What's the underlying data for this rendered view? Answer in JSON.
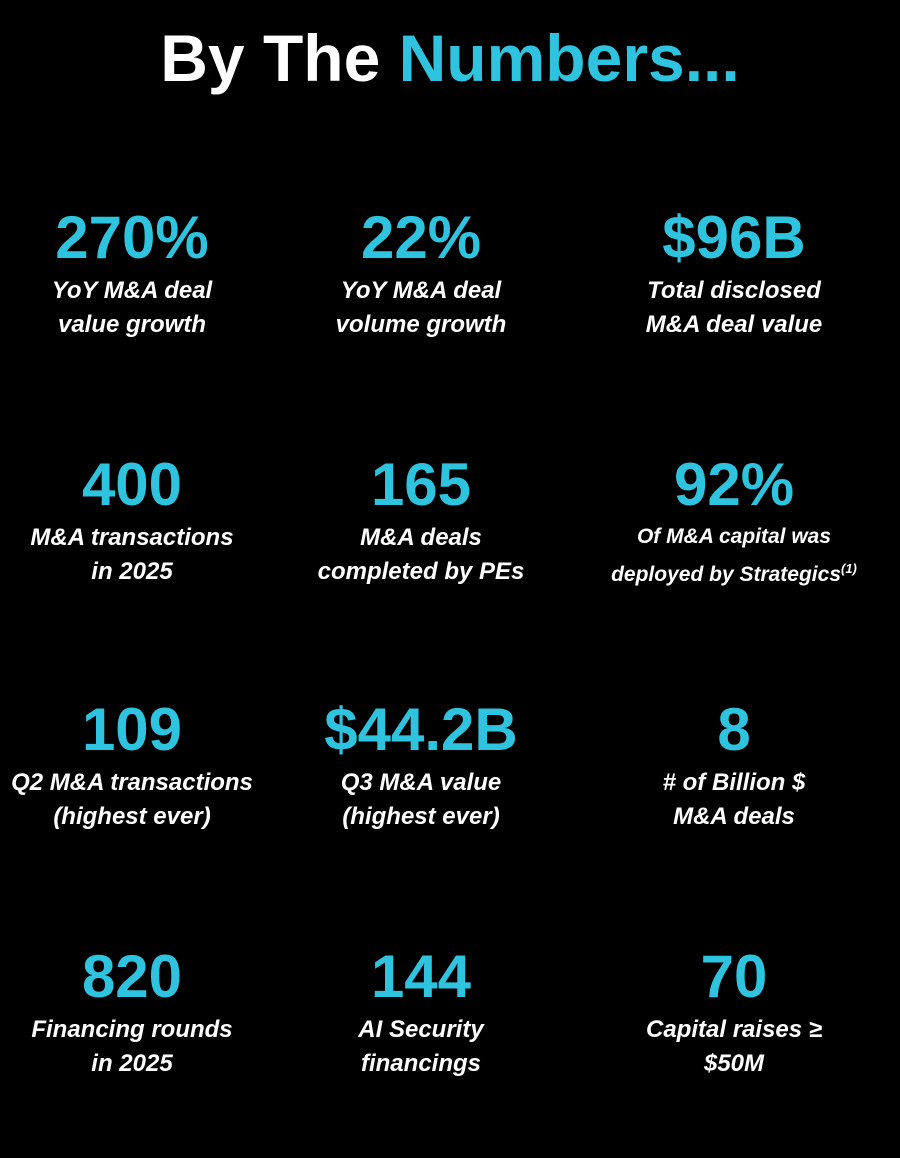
{
  "header": {
    "title_start": "By The",
    "title_highlight": "Numbers..."
  },
  "stats": [
    {
      "value": "270%",
      "lines": [
        "YoY M&A deal",
        "value growth"
      ]
    },
    {
      "value": "22%",
      "lines": [
        "YoY M&A deal",
        "volume growth"
      ]
    },
    {
      "value": "$96B",
      "lines": [
        "Total disclosed",
        "M&A deal value"
      ]
    },
    {
      "value": "400",
      "lines": [
        "M&A transactions",
        "in 2025"
      ]
    },
    {
      "value": "165",
      "lines": [
        "M&A deals",
        "completed by PEs"
      ]
    },
    {
      "value": "92%",
      "lines": [
        "Of M&A capital was",
        "deployed by Strategics"
      ],
      "note": "(1)"
    },
    {
      "value": "109",
      "lines": [
        "Q2 M&A transactions",
        "(highest ever)"
      ]
    },
    {
      "value": "$44.2B",
      "lines": [
        "Q3 M&A value",
        "(highest ever)"
      ]
    },
    {
      "value": "8",
      "lines": [
        "# of Billion $",
        "M&A deals"
      ]
    },
    {
      "value": "820",
      "lines": [
        "Financing rounds",
        "in 2025"
      ]
    },
    {
      "value": "144",
      "lines": [
        "AI Security",
        "financings"
      ]
    },
    {
      "value": "70",
      "lines": [
        "Capital raises ≥",
        "$50M"
      ]
    }
  ]
}
